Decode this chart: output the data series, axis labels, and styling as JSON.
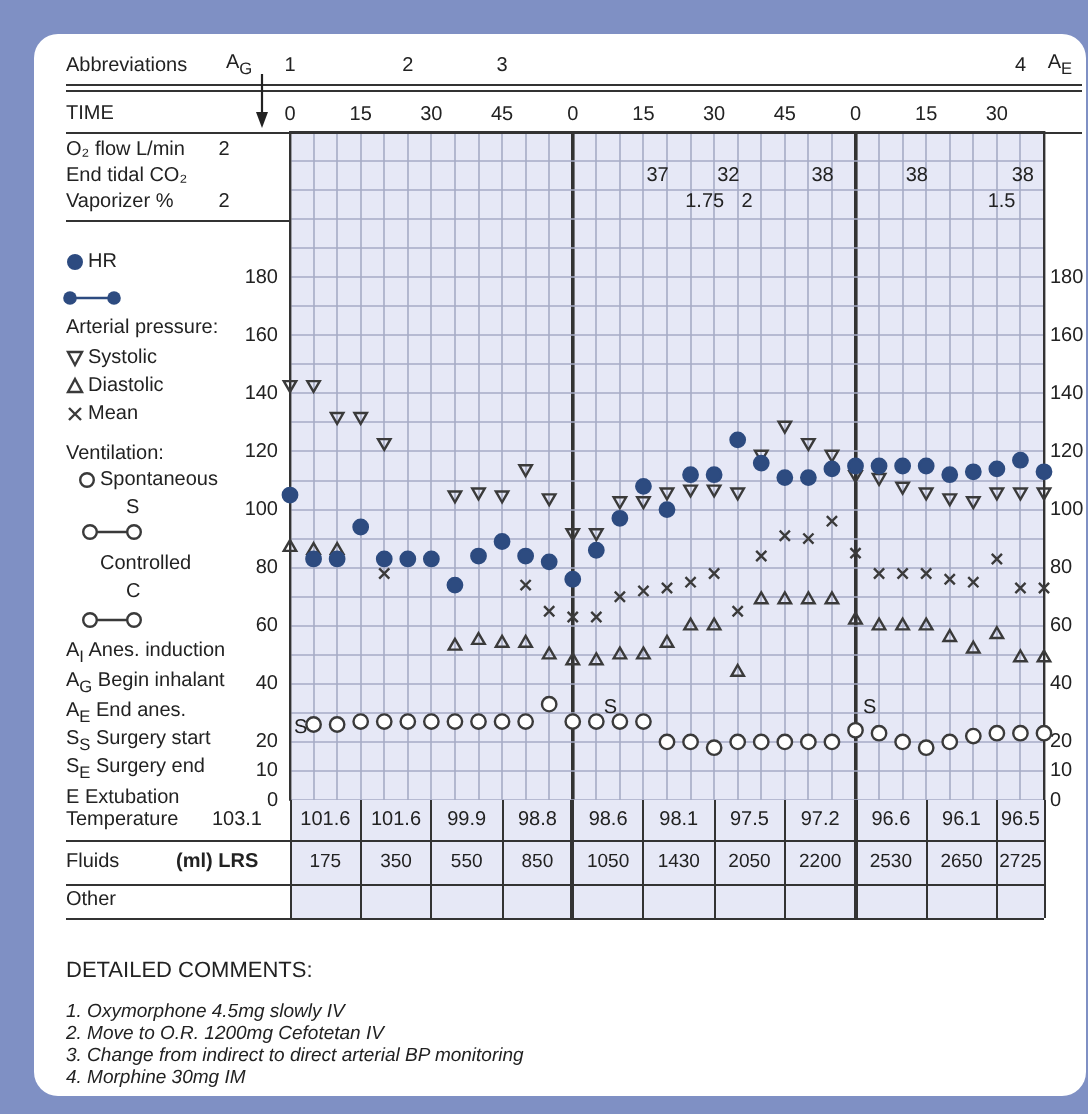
{
  "chart_data": {
    "type": "scatter",
    "categories": [
      "0",
      null,
      null,
      "15",
      null,
      null,
      "30",
      null,
      null,
      "45",
      null,
      null,
      "0",
      null,
      null,
      "15",
      null,
      null,
      "30",
      null,
      null,
      "45",
      null,
      null,
      "0",
      null,
      null,
      "15",
      null,
      null,
      "30",
      null,
      null
    ],
    "series": [
      {
        "name": "HR",
        "color": "#2d4b80",
        "marker": "circle",
        "values": [
          105,
          83,
          83,
          94,
          83,
          83,
          83,
          74,
          84,
          89,
          84,
          82,
          76,
          86,
          97,
          108,
          100,
          112,
          112,
          124,
          116,
          111,
          111,
          114,
          115,
          115,
          115,
          115,
          112,
          113,
          114,
          117,
          113
        ]
      },
      {
        "name": "Systolic",
        "color": "#3a3a3a",
        "marker": "triangle",
        "values": [
          143,
          143,
          132,
          132,
          123,
          null,
          null,
          105,
          106,
          105,
          114,
          104,
          92,
          92,
          103,
          103,
          106,
          107,
          107,
          106,
          119,
          129,
          123,
          119,
          112,
          111,
          108,
          106,
          104,
          103,
          106,
          106,
          106
        ]
      },
      {
        "name": "Diastolic",
        "color": "#3a3a3a",
        "marker": "triangle",
        "values": [
          87,
          86,
          86,
          null,
          null,
          null,
          null,
          53,
          55,
          54,
          54,
          50,
          48,
          48,
          50,
          50,
          54,
          60,
          60,
          44,
          69,
          69,
          69,
          69,
          62,
          60,
          60,
          60,
          56,
          52,
          57,
          49,
          49
        ]
      },
      {
        "name": "Mean",
        "color": "#3a3a3a",
        "marker": "cross",
        "values": [
          null,
          null,
          null,
          null,
          78,
          null,
          null,
          null,
          null,
          null,
          74,
          65,
          63,
          63,
          70,
          72,
          73,
          75,
          78,
          65,
          84,
          91,
          90,
          96,
          85,
          78,
          78,
          78,
          76,
          75,
          83,
          73,
          73
        ]
      },
      {
        "name": "Spontaneous",
        "color": "#3a3a3a",
        "marker": "circle",
        "values": [
          null,
          26,
          26,
          27,
          27,
          27,
          27,
          27,
          27,
          27,
          27,
          33,
          27,
          27,
          27,
          27,
          20,
          20,
          18,
          20,
          20,
          20,
          20,
          20,
          24,
          23,
          20,
          18,
          20,
          22,
          23,
          23,
          23
        ]
      }
    ],
    "ylim": [
      0,
      230
    ],
    "yticks": [
      0,
      10,
      20,
      {
        "value": 30,
        "label": null
      },
      40,
      {
        "value": 50,
        "label": null
      },
      60,
      {
        "value": 70,
        "label": null
      },
      80,
      {
        "value": 90,
        "label": null
      },
      100,
      {
        "value": 110,
        "label": null
      },
      120,
      {
        "value": 130,
        "label": null
      },
      140,
      {
        "value": 150,
        "label": null
      },
      160,
      {
        "value": 170,
        "label": null
      },
      180,
      {
        "value": 190,
        "label": null
      },
      {
        "value": 200,
        "label": null
      },
      {
        "value": 210,
        "label": null
      },
      {
        "value": 220,
        "label": null
      },
      {
        "value": 230,
        "label": null
      }
    ],
    "y2lim": [
      0,
      230
    ],
    "y2ticks": [
      0,
      10,
      20,
      40,
      60,
      80,
      100,
      120,
      140,
      160,
      180
    ],
    "grid": true,
    "legend": "left",
    "annotations": [
      "Abbreviations",
      "A$_{G}$",
      "1",
      "2",
      "3",
      "4",
      "A$_{E}$",
      "TIME",
      "O₂ flow  L/min",
      "2",
      "End tidal CO₂",
      "Vaporizer %",
      "2",
      "37",
      "32",
      "38",
      "38",
      "38",
      "1.75",
      "2",
      "1.5",
      "Arterial pressure:",
      "Ventilation:",
      "S",
      "Controlled",
      "C",
      "A$_{I}$ Anes. induction",
      "A$_{G}$ Begin inhalant",
      "A$_{E}$ End anes.",
      "S$_{S}$ Surgery start",
      "S$_{E}$ Surgery end",
      "E Extubation",
      "S",
      "S",
      "S",
      "Temperature",
      "103.1",
      "101.6",
      "101.6",
      "99.9",
      "98.8",
      "98.6",
      "98.1",
      "97.5",
      "97.2",
      "96.6",
      "96.1",
      "96.5",
      "Fluids",
      "(ml) LRS",
      "175",
      "350",
      "550",
      "850",
      "1050",
      "1430",
      "2050",
      "2200",
      "2530",
      "2650",
      "2725",
      "Other",
      "DETAILED COMMENTS:",
      "1. Oxymorphone 4.5mg slowly IV",
      "2. Move to O.R. 1200mg Cefotetan IV",
      "3. Change from indirect to direct arterial BP monitoring",
      "4. Morphine 30mg IM"
    ]
  }
}
